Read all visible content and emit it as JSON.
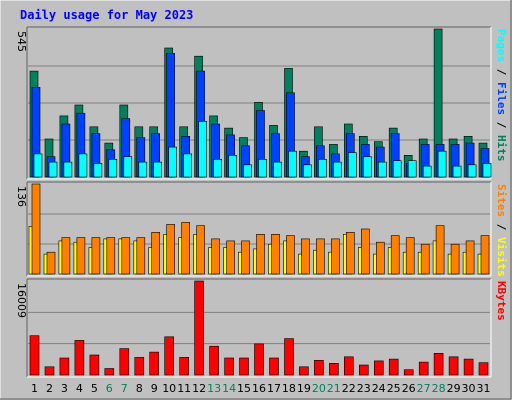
{
  "page": {
    "title": "Daily usage for May 2023"
  },
  "colors": {
    "background": "#c0c0c0",
    "panel": "#c0c0c0",
    "title": "#0000ff",
    "hits": "#00805c",
    "files": "#0040ff",
    "pages": "#00ffff",
    "visits": "#ffff00",
    "sites": "#ff8000",
    "kbytes": "#ff0000",
    "weekend_day": "#00805c",
    "weekday": "#000000"
  },
  "chart_data": [
    {
      "type": "bar",
      "panel": "hits-files-pages",
      "y_max_label": "545",
      "ylim": [
        0,
        545
      ],
      "axis_label_parts": [
        {
          "text": "Pages",
          "color_key": "pages"
        },
        {
          "text": " / ",
          "color_key": "sep"
        },
        {
          "text": "Files",
          "color_key": "files"
        },
        {
          "text": " / ",
          "color_key": "sep"
        },
        {
          "text": "Hits",
          "color_key": "hits"
        }
      ],
      "series": [
        {
          "name": "Hits",
          "color_key": "hits",
          "values": [
            390,
            140,
            225,
            265,
            185,
            125,
            265,
            185,
            185,
            475,
            185,
            445,
            225,
            180,
            145,
            275,
            190,
            400,
            95,
            185,
            120,
            195,
            150,
            130,
            180,
            80,
            140,
            545,
            140,
            150,
            125
          ]
        },
        {
          "name": "Files",
          "color_key": "files",
          "values": [
            330,
            75,
            195,
            235,
            160,
            100,
            215,
            145,
            160,
            455,
            150,
            390,
            195,
            155,
            115,
            245,
            160,
            310,
            75,
            115,
            85,
            160,
            120,
            110,
            160,
            50,
            120,
            120,
            120,
            125,
            105
          ]
        },
        {
          "name": "Pages",
          "color_key": "pages",
          "values": [
            85,
            55,
            55,
            85,
            50,
            65,
            75,
            55,
            55,
            110,
            85,
            205,
            65,
            80,
            45,
            65,
            55,
            95,
            45,
            65,
            55,
            90,
            75,
            55,
            60,
            60,
            40,
            95,
            40,
            45,
            50
          ]
        }
      ]
    },
    {
      "type": "bar",
      "panel": "sites-visits",
      "y_max_label": "136",
      "ylim": [
        0,
        136
      ],
      "axis_label_parts": [
        {
          "text": "Sites",
          "color_key": "sites"
        },
        {
          "text": " / ",
          "color_key": "sep"
        },
        {
          "text": "Visits",
          "color_key": "visits"
        }
      ],
      "series": [
        {
          "name": "Visits",
          "color_key": "visits",
          "values": [
            72,
            30,
            50,
            48,
            40,
            53,
            53,
            50,
            40,
            60,
            55,
            60,
            40,
            40,
            33,
            38,
            45,
            50,
            30,
            36,
            33,
            60,
            40,
            30,
            40,
            33,
            33,
            50,
            30,
            33,
            30
          ]
        },
        {
          "name": "Sites",
          "color_key": "sites",
          "values": [
            136,
            33,
            55,
            55,
            55,
            55,
            55,
            55,
            63,
            75,
            78,
            73,
            53,
            50,
            50,
            60,
            60,
            58,
            53,
            53,
            53,
            63,
            68,
            48,
            58,
            55,
            45,
            73,
            45,
            50,
            58
          ]
        }
      ]
    },
    {
      "type": "bar",
      "panel": "kbytes",
      "y_max_label": "16009",
      "ylim": [
        0,
        16009
      ],
      "axis_label_parts": [
        {
          "text": "KBytes",
          "color_key": "kbytes"
        }
      ],
      "series": [
        {
          "name": "KBytes",
          "color_key": "kbytes",
          "values": [
            6700,
            1400,
            2900,
            5900,
            3400,
            1100,
            4500,
            3000,
            3900,
            6500,
            3000,
            16009,
            4900,
            2900,
            2900,
            5300,
            2900,
            6200,
            1400,
            2500,
            2000,
            3100,
            1700,
            2400,
            2700,
            900,
            2200,
            3700,
            3100,
            2700,
            2100
          ]
        }
      ]
    }
  ],
  "x_axis": {
    "days": [
      "1",
      "2",
      "3",
      "4",
      "5",
      "6",
      "7",
      "8",
      "9",
      "10",
      "11",
      "12",
      "13",
      "14",
      "15",
      "16",
      "17",
      "18",
      "19",
      "20",
      "21",
      "22",
      "23",
      "24",
      "25",
      "26",
      "27",
      "28",
      "29",
      "30",
      "31"
    ],
    "weekend_days": [
      "6",
      "7",
      "13",
      "14",
      "20",
      "21",
      "27",
      "28"
    ]
  }
}
